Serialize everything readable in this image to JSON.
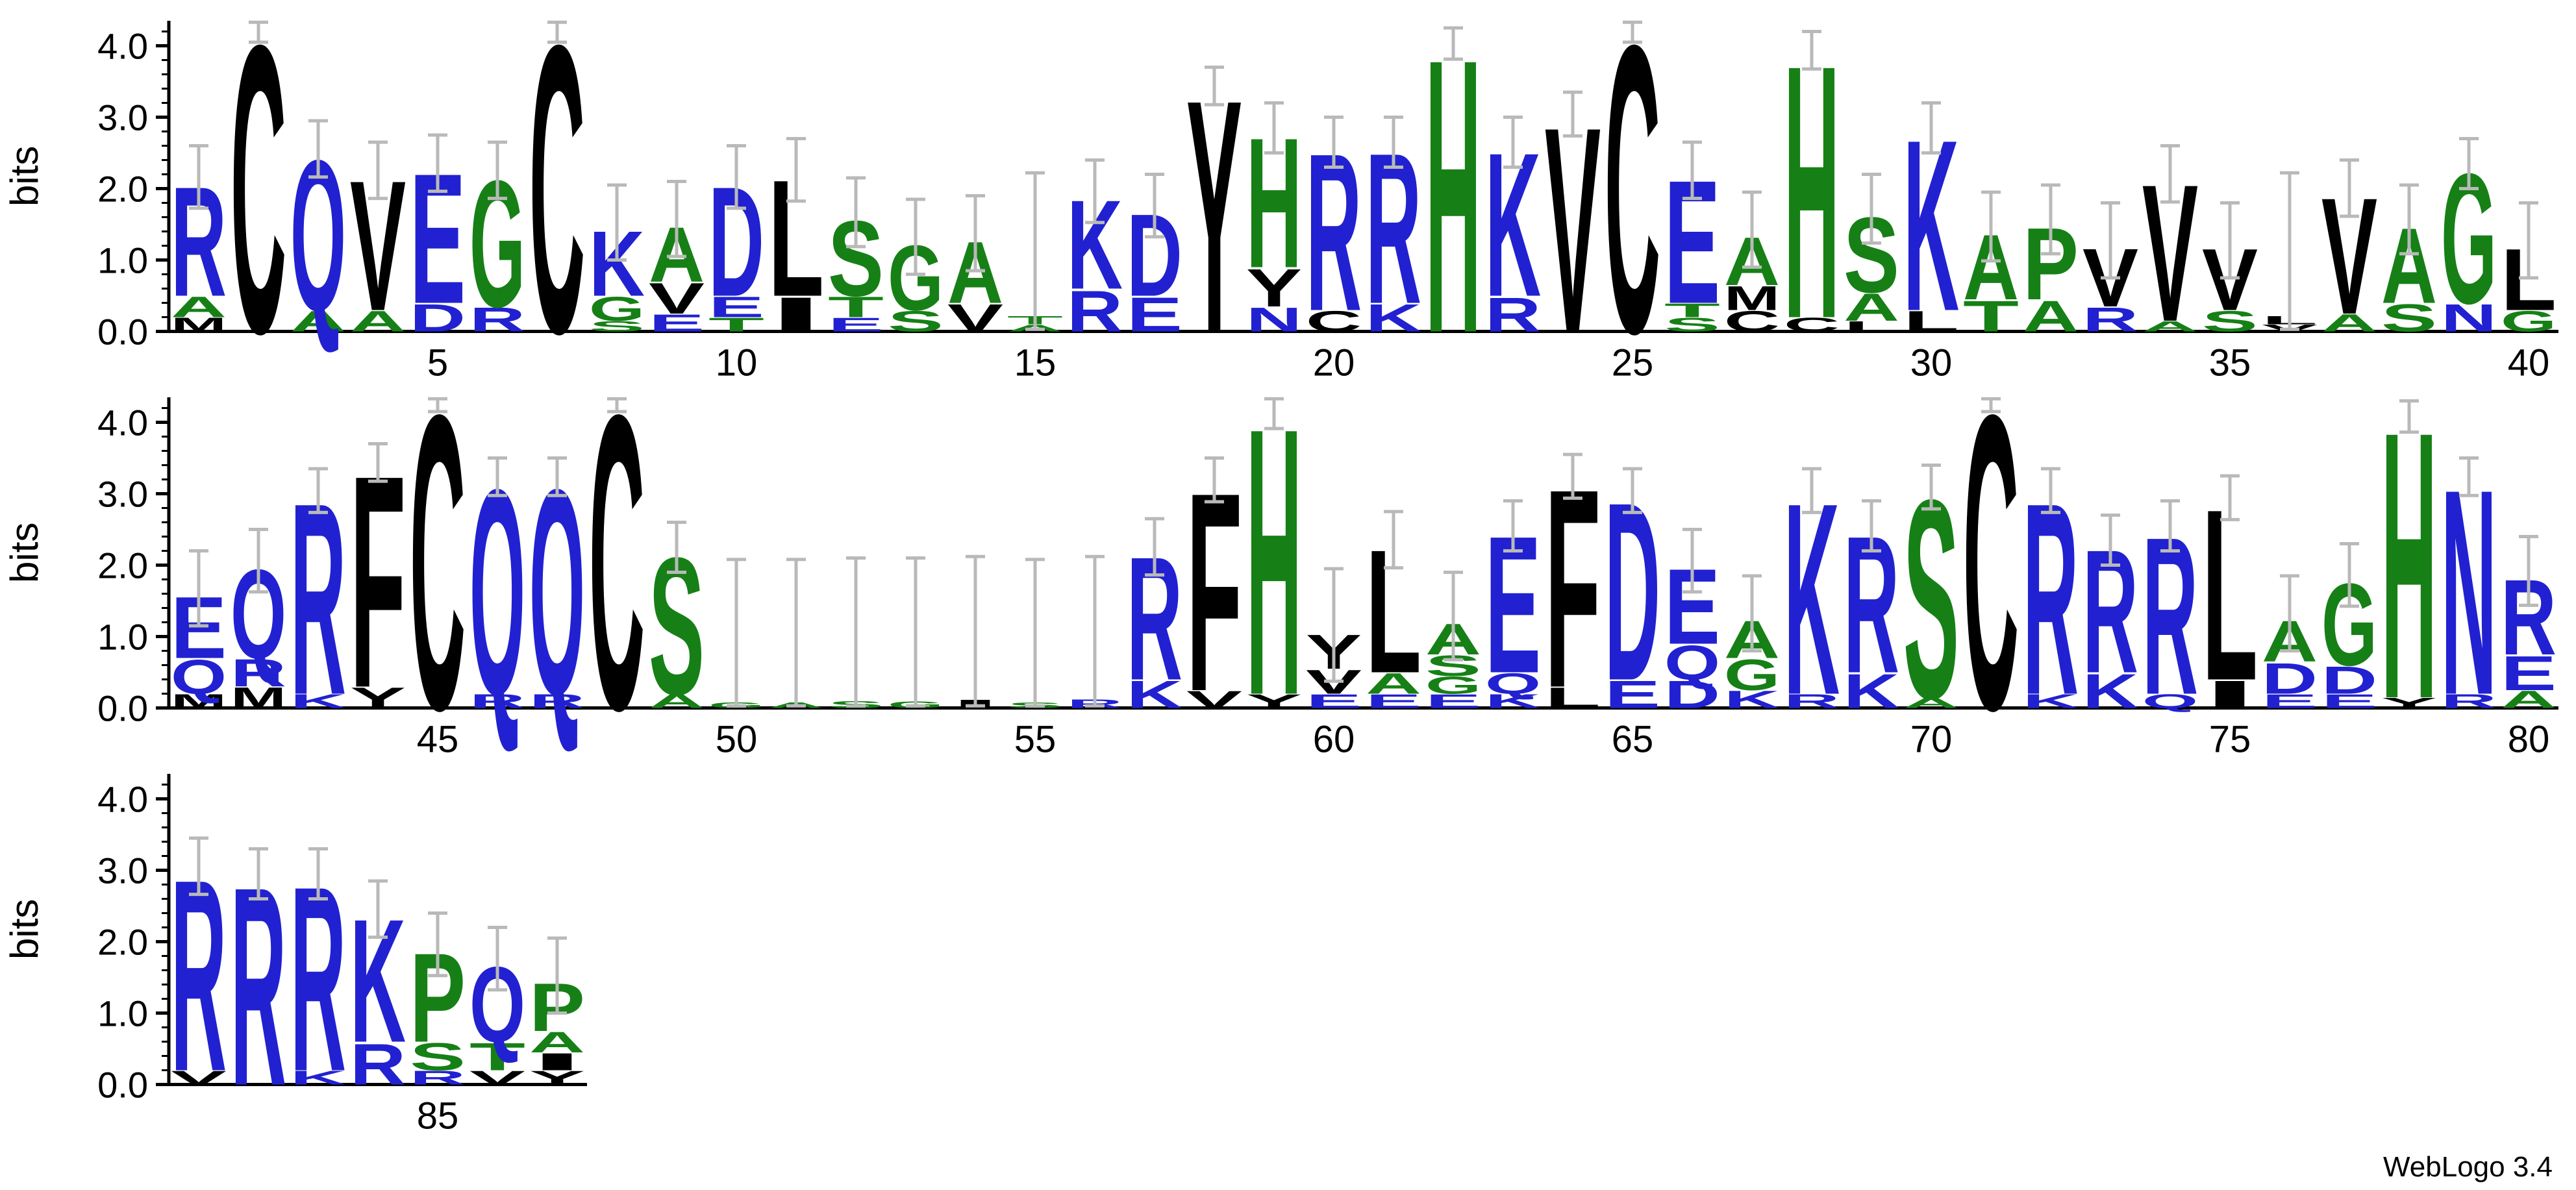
{
  "meta": {
    "credit": "WebLogo 3.4"
  },
  "chart_data": {
    "type": "sequence_logo",
    "title": "",
    "ylabel": "bits",
    "ylim": [
      0,
      4.35
    ],
    "yticks": [
      0,
      1,
      2,
      3,
      4
    ],
    "minor_tick_step": 0.2,
    "legend": "none",
    "grid": false,
    "color_scheme": {
      "name": "hydrophobicity",
      "blue": "RKDENQ",
      "green": "SGHTAP",
      "black": "YVMCLFIW"
    },
    "colors": {
      "blue": "#2121D1",
      "green": "#168016",
      "black": "#000000",
      "error_bar": "#B9B9B9",
      "axis": "#000000"
    },
    "rows": [
      {
        "start": 1,
        "end": 40,
        "xtick_interval": 5
      },
      {
        "start": 41,
        "end": 80,
        "xtick_interval": 5
      },
      {
        "start": 81,
        "end": 87,
        "xtick_interval": 5
      }
    ],
    "positions": [
      {
        "pos": 1,
        "stack": [
          [
            "M",
            0.2
          ],
          [
            "A",
            0.3
          ],
          [
            "R",
            1.6
          ]
        ],
        "err": 0.5
      },
      {
        "pos": 2,
        "stack": [
          [
            "C",
            4.2
          ]
        ],
        "err": 0.2
      },
      {
        "pos": 3,
        "stack": [
          [
            "A",
            0.3
          ],
          [
            "Q",
            2.2
          ]
        ],
        "err": 0.45
      },
      {
        "pos": 4,
        "stack": [
          [
            "A",
            0.3
          ],
          [
            "V",
            1.9
          ]
        ],
        "err": 0.45
      },
      {
        "pos": 5,
        "stack": [
          [
            "D",
            0.4
          ],
          [
            "E",
            1.9
          ]
        ],
        "err": 0.45
      },
      {
        "pos": 6,
        "stack": [
          [
            "R",
            0.35
          ],
          [
            "G",
            1.85
          ]
        ],
        "err": 0.45
      },
      {
        "pos": 7,
        "stack": [
          [
            "C",
            4.2
          ]
        ],
        "err": 0.2
      },
      {
        "pos": 8,
        "stack": [
          [
            "S",
            0.15
          ],
          [
            "G",
            0.35
          ],
          [
            "K",
            0.95
          ]
        ],
        "err": 0.6
      },
      {
        "pos": 9,
        "stack": [
          [
            "E",
            0.25
          ],
          [
            "V",
            0.45
          ],
          [
            "A",
            0.8
          ]
        ],
        "err": 0.6
      },
      {
        "pos": 10,
        "stack": [
          [
            "T",
            0.2
          ],
          [
            "E",
            0.3
          ],
          [
            "D",
            1.6
          ]
        ],
        "err": 0.5
      },
      {
        "pos": 11,
        "stack": [
          [
            "I",
            0.5
          ],
          [
            "L",
            1.7
          ]
        ],
        "err": 0.5
      },
      {
        "pos": 12,
        "stack": [
          [
            "E",
            0.2
          ],
          [
            "T",
            0.3
          ],
          [
            "S",
            1.1
          ]
        ],
        "err": 0.55
      },
      {
        "pos": 13,
        "stack": [
          [
            "S",
            0.3
          ],
          [
            "G",
            0.95
          ]
        ],
        "err": 0.6
      },
      {
        "pos": 14,
        "stack": [
          [
            "V",
            0.4
          ],
          [
            "A",
            0.9
          ]
        ],
        "err": 0.6
      },
      {
        "pos": 15,
        "stack": [
          [
            "A",
            0.1
          ],
          [
            "T",
            0.12
          ]
        ],
        "err": 2.0
      },
      {
        "pos": 16,
        "stack": [
          [
            "R",
            0.6
          ],
          [
            "K",
            1.3
          ]
        ],
        "err": 0.5
      },
      {
        "pos": 17,
        "stack": [
          [
            "E",
            0.5
          ],
          [
            "D",
            1.2
          ]
        ],
        "err": 0.5
      },
      {
        "pos": 18,
        "stack": [
          [
            "Y",
            3.4
          ]
        ],
        "err": 0.3
      },
      {
        "pos": 19,
        "stack": [
          [
            "N",
            0.35
          ],
          [
            "Y",
            0.55
          ],
          [
            "H",
            1.9
          ]
        ],
        "err": 0.4
      },
      {
        "pos": 20,
        "stack": [
          [
            "C",
            0.3
          ],
          [
            "R",
            2.3
          ]
        ],
        "err": 0.4
      },
      {
        "pos": 21,
        "stack": [
          [
            "K",
            0.4
          ],
          [
            "R",
            2.2
          ]
        ],
        "err": 0.4
      },
      {
        "pos": 22,
        "stack": [
          [
            "H",
            4.0
          ]
        ],
        "err": 0.25
      },
      {
        "pos": 23,
        "stack": [
          [
            "R",
            0.5
          ],
          [
            "K",
            2.1
          ]
        ],
        "err": 0.4
      },
      {
        "pos": 24,
        "stack": [
          [
            "V",
            3.0
          ]
        ],
        "err": 0.35
      },
      {
        "pos": 25,
        "stack": [
          [
            "C",
            4.2
          ]
        ],
        "err": 0.2
      },
      {
        "pos": 26,
        "stack": [
          [
            "S",
            0.2
          ],
          [
            "T",
            0.2
          ],
          [
            "E",
            1.8
          ]
        ],
        "err": 0.45
      },
      {
        "pos": 27,
        "stack": [
          [
            "C",
            0.3
          ],
          [
            "M",
            0.35
          ],
          [
            "A",
            0.7
          ]
        ],
        "err": 0.6
      },
      {
        "pos": 28,
        "stack": [
          [
            "C",
            0.2
          ],
          [
            "H",
            3.7
          ]
        ],
        "err": 0.3
      },
      {
        "pos": 29,
        "stack": [
          [
            "L",
            0.15
          ],
          [
            "A",
            0.4
          ],
          [
            "S",
            1.1
          ]
        ],
        "err": 0.55
      },
      {
        "pos": 30,
        "stack": [
          [
            "L",
            0.3
          ],
          [
            "K",
            2.5
          ]
        ],
        "err": 0.4
      },
      {
        "pos": 31,
        "stack": [
          [
            "T",
            0.45
          ],
          [
            "A",
            0.95
          ]
        ],
        "err": 0.55
      },
      {
        "pos": 32,
        "stack": [
          [
            "A",
            0.45
          ],
          [
            "P",
            1.05
          ]
        ],
        "err": 0.55
      },
      {
        "pos": 33,
        "stack": [
          [
            "R",
            0.35
          ],
          [
            "V",
            0.85
          ]
        ],
        "err": 0.6
      },
      {
        "pos": 34,
        "stack": [
          [
            "A",
            0.15
          ],
          [
            "V",
            2.0
          ]
        ],
        "err": 0.45
      },
      {
        "pos": 35,
        "stack": [
          [
            "S",
            0.3
          ],
          [
            "V",
            0.9
          ]
        ],
        "err": 0.6
      },
      {
        "pos": 36,
        "stack": [
          [
            "V",
            0.1
          ],
          [
            "L",
            0.12
          ]
        ],
        "err": 2.0
      },
      {
        "pos": 37,
        "stack": [
          [
            "A",
            0.25
          ],
          [
            "V",
            1.7
          ]
        ],
        "err": 0.45
      },
      {
        "pos": 38,
        "stack": [
          [
            "S",
            0.4
          ],
          [
            "A",
            1.1
          ]
        ],
        "err": 0.55
      },
      {
        "pos": 39,
        "stack": [
          [
            "N",
            0.4
          ],
          [
            "G",
            1.9
          ]
        ],
        "err": 0.4
      },
      {
        "pos": 40,
        "stack": [
          [
            "G",
            0.3
          ],
          [
            "L",
            0.9
          ]
        ],
        "err": 0.6
      },
      {
        "pos": 41,
        "stack": [
          [
            "M",
            0.2
          ],
          [
            "Q",
            0.5
          ],
          [
            "E",
            0.9
          ]
        ],
        "err": 0.6
      },
      {
        "pos": 42,
        "stack": [
          [
            "M",
            0.3
          ],
          [
            "R",
            0.4
          ],
          [
            "Q",
            1.3
          ]
        ],
        "err": 0.5
      },
      {
        "pos": 43,
        "stack": [
          [
            "K",
            0.2
          ],
          [
            "R",
            2.8
          ]
        ],
        "err": 0.35
      },
      {
        "pos": 44,
        "stack": [
          [
            "Y",
            0.3
          ],
          [
            "F",
            3.1
          ]
        ],
        "err": 0.3
      },
      {
        "pos": 45,
        "stack": [
          [
            "C",
            4.3
          ]
        ],
        "err": 0.2
      },
      {
        "pos": 46,
        "stack": [
          [
            "R",
            0.2
          ],
          [
            "Q",
            3.0
          ]
        ],
        "err": 0.3
      },
      {
        "pos": 47,
        "stack": [
          [
            "R",
            0.2
          ],
          [
            "Q",
            3.0
          ]
        ],
        "err": 0.3
      },
      {
        "pos": 48,
        "stack": [
          [
            "C",
            4.3
          ]
        ],
        "err": 0.2
      },
      {
        "pos": 49,
        "stack": [
          [
            "A",
            0.2
          ],
          [
            "S",
            2.0
          ]
        ],
        "err": 0.4
      },
      {
        "pos": 50,
        "stack": [
          [
            "G",
            0.08
          ]
        ],
        "err": 2.0
      },
      {
        "pos": 51,
        "stack": [
          [
            "A",
            0.08
          ]
        ],
        "err": 2.0
      },
      {
        "pos": 52,
        "stack": [
          [
            "S",
            0.1
          ]
        ],
        "err": 2.0
      },
      {
        "pos": 53,
        "stack": [
          [
            "G",
            0.1
          ]
        ],
        "err": 2.0
      },
      {
        "pos": 54,
        "stack": [
          [
            "I",
            0.12
          ]
        ],
        "err": 2.0
      },
      {
        "pos": 55,
        "stack": [
          [
            "S",
            0.08
          ]
        ],
        "err": 2.0
      },
      {
        "pos": 56,
        "stack": [
          [
            "R",
            0.12
          ]
        ],
        "err": 2.0
      },
      {
        "pos": 57,
        "stack": [
          [
            "K",
            0.4
          ],
          [
            "R",
            1.8
          ]
        ],
        "err": 0.45
      },
      {
        "pos": 58,
        "stack": [
          [
            "V",
            0.25
          ],
          [
            "F",
            2.9
          ]
        ],
        "err": 0.35
      },
      {
        "pos": 59,
        "stack": [
          [
            "Y",
            0.2
          ],
          [
            "H",
            3.9
          ]
        ],
        "err": 0.25
      },
      {
        "pos": 60,
        "stack": [
          [
            "E",
            0.2
          ],
          [
            "V",
            0.35
          ],
          [
            "Y",
            0.5
          ]
        ],
        "err": 0.9
      },
      {
        "pos": 61,
        "stack": [
          [
            "E",
            0.2
          ],
          [
            "A",
            0.3
          ],
          [
            "L",
            1.8
          ]
        ],
        "err": 0.45
      },
      {
        "pos": 62,
        "stack": [
          [
            "E",
            0.2
          ],
          [
            "G",
            0.25
          ],
          [
            "S",
            0.3
          ],
          [
            "A",
            0.45
          ]
        ],
        "err": 0.7
      },
      {
        "pos": 63,
        "stack": [
          [
            "K",
            0.2
          ],
          [
            "Q",
            0.3
          ],
          [
            "E",
            2.0
          ]
        ],
        "err": 0.4
      },
      {
        "pos": 64,
        "stack": [
          [
            "L",
            0.3
          ],
          [
            "F",
            2.9
          ]
        ],
        "err": 0.35
      },
      {
        "pos": 65,
        "stack": [
          [
            "E",
            0.4
          ],
          [
            "D",
            2.6
          ]
        ],
        "err": 0.35
      },
      {
        "pos": 66,
        "stack": [
          [
            "D",
            0.4
          ],
          [
            "Q",
            0.5
          ],
          [
            "E",
            1.1
          ]
        ],
        "err": 0.5
      },
      {
        "pos": 67,
        "stack": [
          [
            "K",
            0.25
          ],
          [
            "G",
            0.45
          ],
          [
            "A",
            0.55
          ]
        ],
        "err": 0.6
      },
      {
        "pos": 68,
        "stack": [
          [
            "R",
            0.2
          ],
          [
            "K",
            2.8
          ]
        ],
        "err": 0.35
      },
      {
        "pos": 69,
        "stack": [
          [
            "K",
            0.5
          ],
          [
            "R",
            2.0
          ]
        ],
        "err": 0.4
      },
      {
        "pos": 70,
        "stack": [
          [
            "A",
            0.15
          ],
          [
            "S",
            2.9
          ]
        ],
        "err": 0.35
      },
      {
        "pos": 71,
        "stack": [
          [
            "C",
            4.3
          ]
        ],
        "err": 0.2
      },
      {
        "pos": 72,
        "stack": [
          [
            "K",
            0.2
          ],
          [
            "R",
            2.8
          ]
        ],
        "err": 0.35
      },
      {
        "pos": 73,
        "stack": [
          [
            "K",
            0.5
          ],
          [
            "R",
            1.8
          ]
        ],
        "err": 0.4
      },
      {
        "pos": 74,
        "stack": [
          [
            "Q",
            0.2
          ],
          [
            "R",
            2.3
          ]
        ],
        "err": 0.4
      },
      {
        "pos": 75,
        "stack": [
          [
            "I",
            0.4
          ],
          [
            "L",
            2.5
          ]
        ],
        "err": 0.35
      },
      {
        "pos": 76,
        "stack": [
          [
            "E",
            0.2
          ],
          [
            "D",
            0.45
          ],
          [
            "A",
            0.6
          ]
        ],
        "err": 0.6
      },
      {
        "pos": 77,
        "stack": [
          [
            "E",
            0.2
          ],
          [
            "D",
            0.4
          ],
          [
            "G",
            1.2
          ]
        ],
        "err": 0.5
      },
      {
        "pos": 78,
        "stack": [
          [
            "Y",
            0.15
          ],
          [
            "H",
            3.9
          ]
        ],
        "err": 0.25
      },
      {
        "pos": 79,
        "stack": [
          [
            "R",
            0.2
          ],
          [
            "N",
            3.0
          ]
        ],
        "err": 0.3
      },
      {
        "pos": 80,
        "stack": [
          [
            "A",
            0.25
          ],
          [
            "E",
            0.5
          ],
          [
            "R",
            1.1
          ]
        ],
        "err": 0.55
      },
      {
        "pos": 81,
        "stack": [
          [
            "V",
            0.2
          ],
          [
            "R",
            2.8
          ]
        ],
        "err": 0.45
      },
      {
        "pos": 82,
        "stack": [
          [
            "R",
            2.9
          ]
        ],
        "err": 0.4
      },
      {
        "pos": 83,
        "stack": [
          [
            "K",
            0.2
          ],
          [
            "R",
            2.7
          ]
        ],
        "err": 0.4
      },
      {
        "pos": 84,
        "stack": [
          [
            "R",
            0.6
          ],
          [
            "K",
            1.8
          ]
        ],
        "err": 0.45
      },
      {
        "pos": 85,
        "stack": [
          [
            "R",
            0.2
          ],
          [
            "S",
            0.4
          ],
          [
            "P",
            1.3
          ]
        ],
        "err": 0.5
      },
      {
        "pos": 86,
        "stack": [
          [
            "V",
            0.2
          ],
          [
            "T",
            0.4
          ],
          [
            "Q",
            1.1
          ]
        ],
        "err": 0.5
      },
      {
        "pos": 87,
        "stack": [
          [
            "Y",
            0.2
          ],
          [
            "I",
            0.25
          ],
          [
            "A",
            0.3
          ],
          [
            "P",
            0.7
          ]
        ],
        "err": 0.6
      }
    ]
  }
}
